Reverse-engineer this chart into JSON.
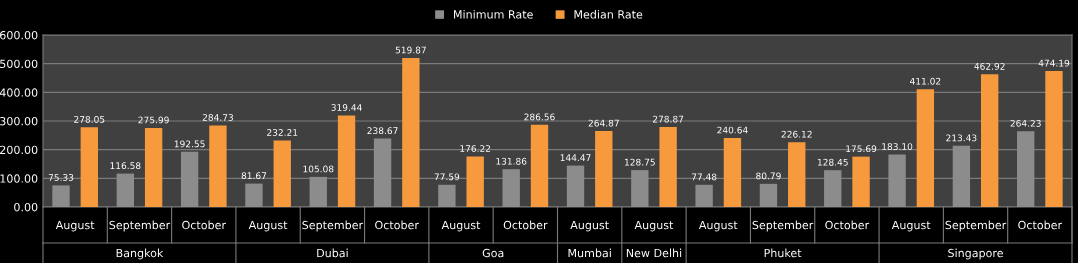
{
  "chart_data": {
    "type": "bar",
    "categories": [
      "August",
      "September",
      "October",
      "August",
      "September",
      "October",
      "August",
      "October",
      "August",
      "August",
      "August",
      "September",
      "October",
      "August",
      "September",
      "October"
    ],
    "series": [
      {
        "name": "Minimum Rate",
        "color": "#8c8c8c",
        "values": [
          75.33,
          116.58,
          192.55,
          81.67,
          105.08,
          238.67,
          77.59,
          131.86,
          144.47,
          128.75,
          77.48,
          80.79,
          128.45,
          183.1,
          213.43,
          264.23
        ],
        "value_labels": [
          "75.33",
          "116.58",
          "192.55",
          "81.67",
          "105.08",
          "238.67",
          "77.59",
          "131.86",
          "144.47",
          "128.75",
          "77.48",
          "80.79",
          "128.45",
          "183.10",
          "213.43",
          "264.23"
        ]
      },
      {
        "name": "Median Rate",
        "color": "#f79a3e",
        "values": [
          278.05,
          275.99,
          284.73,
          232.21,
          319.44,
          519.87,
          176.22,
          286.56,
          264.87,
          278.87,
          240.64,
          226.12,
          175.69,
          411.02,
          462.92,
          474.19
        ],
        "value_labels": [
          "278.05",
          "275.99",
          "284.73",
          "232.21",
          "319.44",
          "519.87",
          "176.22",
          "286.56",
          "264.87",
          "278.87",
          "240.64",
          "226.12",
          "175.69",
          "411.02",
          "462.92",
          "474.19"
        ]
      }
    ],
    "annotations": [
      "Bangkok",
      "Dubai",
      "Goa",
      "Mumbai",
      "New Delhi",
      "Phuket",
      "Singapore"
    ],
    "ylim": [
      0,
      600
    ],
    "yticks": [
      {
        "value": 0,
        "label": "0.00"
      },
      {
        "value": 100,
        "label": "100.00"
      },
      {
        "value": 200,
        "label": "200.00"
      },
      {
        "value": 300,
        "label": "300.00"
      },
      {
        "value": 400,
        "label": "400.00"
      },
      {
        "value": 500,
        "label": "500.00"
      },
      {
        "value": 600,
        "label": "600.00"
      }
    ],
    "grid": "y",
    "legend": "top"
  }
}
